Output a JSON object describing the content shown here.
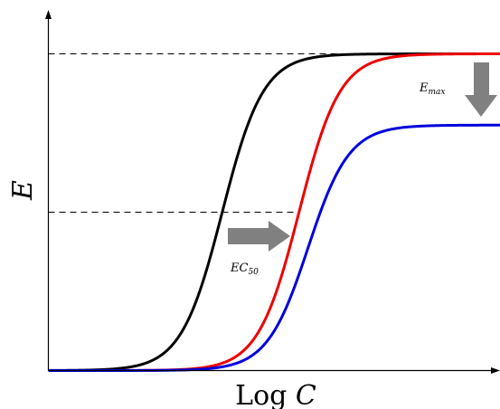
{
  "chart_data": {
    "type": "line",
    "xlabel_prefix": "Log",
    "xlabel_var": "C",
    "ylabel": "E",
    "grid": false,
    "legend": "none",
    "xlim": [
      0,
      10
    ],
    "ylim": [
      0,
      1.02
    ],
    "reference_levels": [
      {
        "y": 1.0,
        "style": "dashed"
      },
      {
        "y": 0.5,
        "style": "dashed"
      }
    ],
    "series": [
      {
        "color": "#000000",
        "emax": 1.0,
        "ec50": 3.85,
        "hill_slope": 2.2
      },
      {
        "color": "#ee0000",
        "emax": 1.0,
        "ec50": 5.55,
        "hill_slope": 2.2
      },
      {
        "color": "#0000dd",
        "emax": 0.775,
        "ec50": 5.75,
        "hill_slope": 2.2
      }
    ],
    "annotations": [
      {
        "base": "EC",
        "subscript": "50",
        "arrow": "right"
      },
      {
        "base": "E",
        "subscript": "max",
        "arrow": "down"
      }
    ],
    "arrow_color": "#808080"
  }
}
